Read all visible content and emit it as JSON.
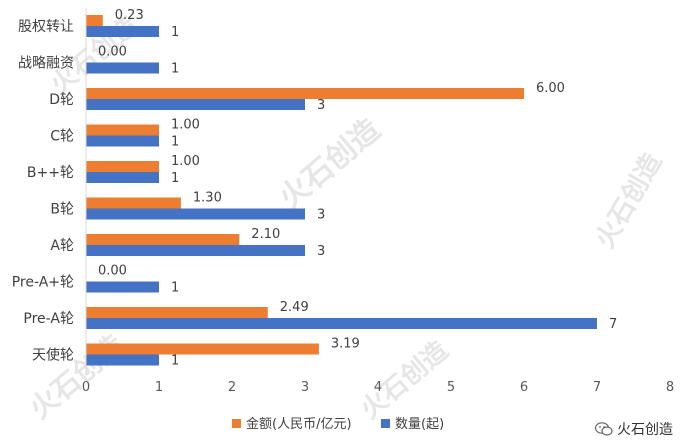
{
  "chart_data": {
    "type": "bar",
    "orientation": "horizontal",
    "categories": [
      "股权转让",
      "战略融资",
      "D轮",
      "C轮",
      "B++轮",
      "B轮",
      "A轮",
      "Pre-A+轮",
      "Pre-A轮",
      "天使轮"
    ],
    "series": [
      {
        "name": "金额(人民币/亿元)",
        "color": "#ED7D31",
        "values": [
          0.23,
          0.0,
          6.0,
          1.0,
          1.0,
          1.3,
          2.1,
          0.0,
          2.49,
          3.19
        ],
        "labels": [
          "0.23",
          "0.00",
          "6.00",
          "1.00",
          "1.00",
          "1.30",
          "2.10",
          "0.00",
          "2.49",
          "3.19"
        ]
      },
      {
        "name": "数量(起)",
        "color": "#4472C4",
        "values": [
          1,
          1,
          3,
          1,
          1,
          3,
          3,
          1,
          7,
          1
        ],
        "labels": [
          "1",
          "1",
          "3",
          "1",
          "1",
          "3",
          "3",
          "1",
          "7",
          "1"
        ]
      }
    ],
    "xlim": [
      0,
      8
    ],
    "xticks": [
      "0",
      "1",
      "2",
      "3",
      "4",
      "5",
      "6",
      "7",
      "8"
    ],
    "grid": false,
    "legend_position": "bottom"
  },
  "watermark": "火石创造",
  "brand": {
    "icon": "wechat-icon",
    "text": "火石创造"
  }
}
